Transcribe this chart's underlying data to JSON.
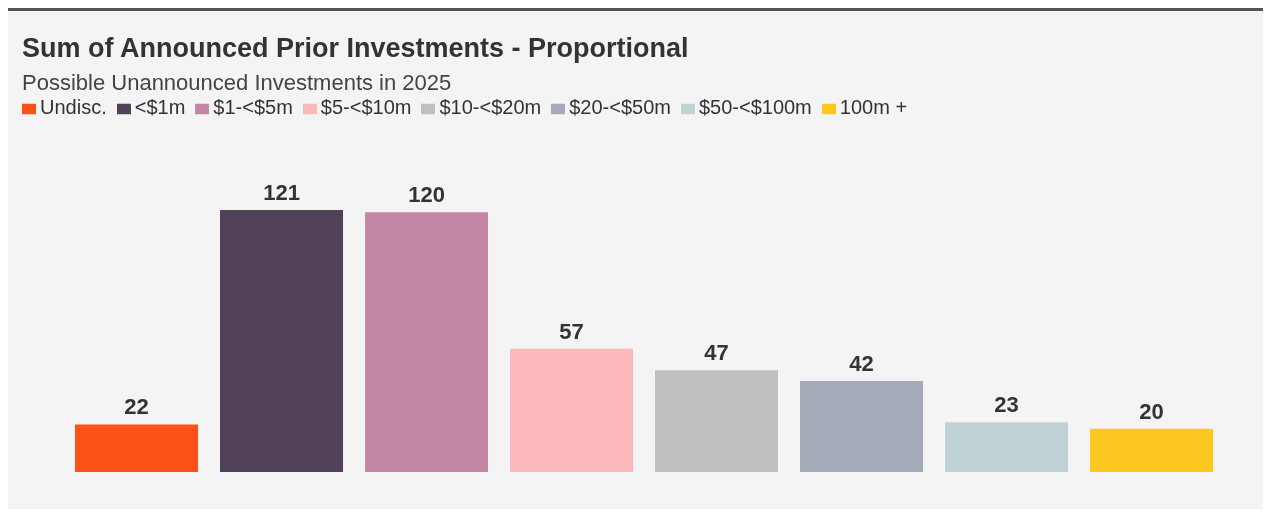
{
  "chart_data": {
    "type": "bar",
    "title": "Sum of Announced Prior Investments - Proportional",
    "subtitle": "Possible Unannounced Investments in 2025",
    "categories": [
      null,
      null,
      null,
      null,
      null,
      null,
      null,
      null
    ],
    "stacked": true,
    "series": [
      {
        "name": "Undisc.",
        "color": "#fc5217",
        "values": [
          22,
          null,
          null,
          null,
          null,
          null,
          null,
          null
        ]
      },
      {
        "name": "<$1m",
        "color": "#514259",
        "values": [
          null,
          121,
          null,
          null,
          null,
          null,
          null,
          null
        ]
      },
      {
        "name": "$1-<$5m",
        "color": "#c486a5",
        "values": [
          null,
          null,
          120,
          null,
          null,
          null,
          null,
          null
        ]
      },
      {
        "name": "$5-<$10m",
        "color": "#fbb9bc",
        "values": [
          null,
          null,
          null,
          57,
          null,
          null,
          null,
          null
        ]
      },
      {
        "name": "$10-<$20m",
        "color": "#c0c0c0",
        "values": [
          null,
          null,
          null,
          null,
          47,
          null,
          null,
          null
        ]
      },
      {
        "name": "$20-<$50m",
        "color": "#a3aab8",
        "values": [
          null,
          null,
          null,
          null,
          null,
          42,
          null,
          null
        ]
      },
      {
        "name": "$50-<$100m",
        "color": "#bfd2d6",
        "values": [
          null,
          null,
          null,
          null,
          null,
          null,
          23,
          null
        ]
      },
      {
        "name": "100m +",
        "color": "#fcc81f",
        "values": [
          null,
          null,
          null,
          null,
          null,
          null,
          null,
          20
        ]
      }
    ],
    "data_labels": true,
    "legend": "top left"
  }
}
